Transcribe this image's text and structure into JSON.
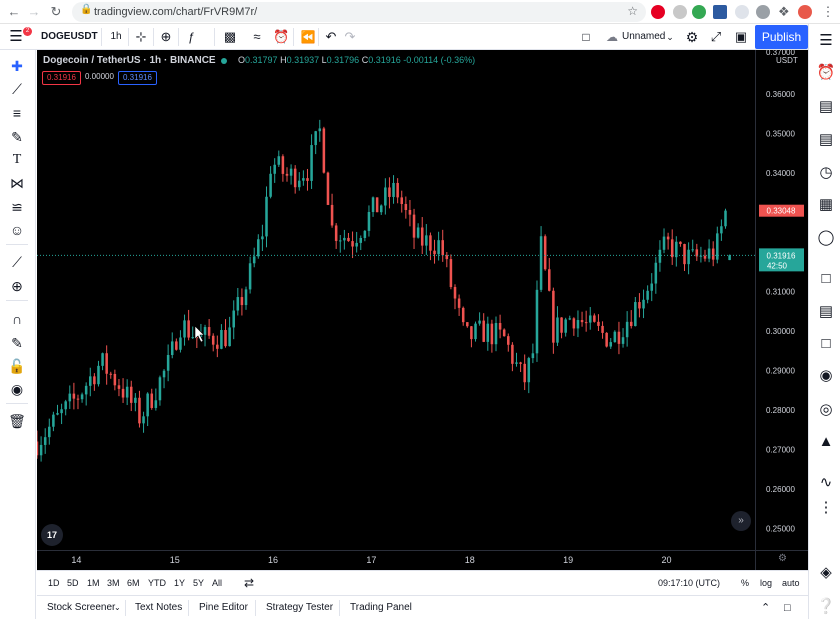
{
  "browser": {
    "url": "tradingview.com/chart/FrVR9M7r/"
  },
  "toolbar": {
    "symbol": "DOGEUSDT",
    "interval": "1h",
    "layout_name": "Unnamed",
    "publish_label": "Publish",
    "notification_count": "2"
  },
  "legend": {
    "title": "Dogecoin / TetherUS · 1h · BINANCE",
    "open_key": "O",
    "open": "0.31797",
    "high_key": "H",
    "high": "0.31937",
    "low_key": "L",
    "low": "0.31796",
    "close_key": "C",
    "close": "0.31916",
    "change": "-0.00114 (-0.36%)",
    "sell_price": "0.31916",
    "spread": "0.00000",
    "buy_price": "0.31916"
  },
  "price_axis": {
    "unit": "USDT",
    "top_tick": "0.37000"
  },
  "badges": {
    "high_price": "0.33048",
    "last_price": "0.31916",
    "countdown": "42:50"
  },
  "logo_text": "17",
  "colors": {
    "up": "#26a69a",
    "down": "#ef5350",
    "background": "#000000",
    "accent": "#2962ff"
  },
  "chart_data": {
    "type": "candlestick",
    "symbol": "DOGEUSDT",
    "interval": "1h",
    "y_ticks": [
      "0.36000",
      "0.35000",
      "0.34000",
      "0.33000",
      "0.32000",
      "0.31000",
      "0.30000",
      "0.29000",
      "0.28000",
      "0.27000",
      "0.26000",
      "0.25000"
    ],
    "ylim": [
      0.2445,
      0.3712
    ],
    "x_ticks": [
      "14",
      "15",
      "16",
      "17",
      "18",
      "19",
      "20"
    ],
    "xlim_days": [
      13.6,
      20.9
    ],
    "last_price": 0.31916,
    "day_high_marker": 0.33048,
    "key_points": [
      {
        "day": 13.6,
        "close": 0.272
      },
      {
        "day": 14.0,
        "close": 0.283
      },
      {
        "day": 14.25,
        "close": 0.292
      },
      {
        "day": 14.45,
        "close": 0.286
      },
      {
        "day": 14.65,
        "close": 0.278
      },
      {
        "day": 14.95,
        "close": 0.292
      },
      {
        "day": 15.05,
        "close": 0.302
      },
      {
        "day": 15.25,
        "close": 0.298
      },
      {
        "day": 15.55,
        "close": 0.299
      },
      {
        "day": 15.75,
        "close": 0.313
      },
      {
        "day": 15.9,
        "close": 0.326
      },
      {
        "day": 15.98,
        "close": 0.343
      },
      {
        "day": 16.15,
        "close": 0.339
      },
      {
        "day": 16.35,
        "close": 0.341
      },
      {
        "day": 16.48,
        "close": 0.351
      },
      {
        "day": 16.6,
        "close": 0.326
      },
      {
        "day": 16.8,
        "close": 0.323
      },
      {
        "day": 17.0,
        "close": 0.33
      },
      {
        "day": 17.25,
        "close": 0.336
      },
      {
        "day": 17.45,
        "close": 0.323
      },
      {
        "day": 17.7,
        "close": 0.322
      },
      {
        "day": 17.95,
        "close": 0.298
      },
      {
        "day": 18.15,
        "close": 0.3
      },
      {
        "day": 18.35,
        "close": 0.298
      },
      {
        "day": 18.55,
        "close": 0.287
      },
      {
        "day": 18.65,
        "close": 0.295
      },
      {
        "day": 18.72,
        "close": 0.322
      },
      {
        "day": 18.85,
        "close": 0.3
      },
      {
        "day": 19.05,
        "close": 0.304
      },
      {
        "day": 19.2,
        "close": 0.301
      },
      {
        "day": 19.45,
        "close": 0.298
      },
      {
        "day": 19.6,
        "close": 0.303
      },
      {
        "day": 19.8,
        "close": 0.311
      },
      {
        "day": 20.0,
        "close": 0.322
      },
      {
        "day": 20.25,
        "close": 0.318
      },
      {
        "day": 20.5,
        "close": 0.32
      },
      {
        "day": 20.62,
        "close": 0.332
      },
      {
        "day": 20.66,
        "close": 0.31916
      }
    ]
  },
  "time_ranges": [
    "1D",
    "5D",
    "1M",
    "3M",
    "6M",
    "YTD",
    "1Y",
    "5Y",
    "All"
  ],
  "clock": "09:17:10 (UTC)",
  "axis_modes": {
    "percent": "%",
    "log": "log",
    "auto": "auto"
  },
  "bottom_tabs": [
    "Stock Screener",
    "Text Notes",
    "Pine Editor",
    "Strategy Tester",
    "Trading Panel"
  ]
}
